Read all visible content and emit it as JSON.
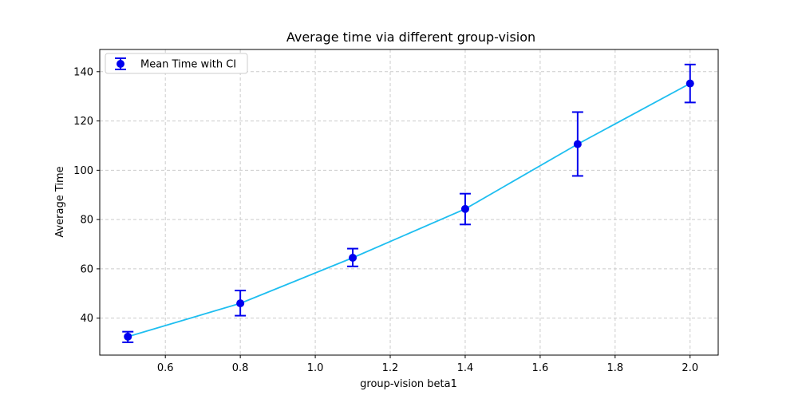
{
  "chart_data": {
    "type": "line",
    "title": "Average time via different group-vision",
    "xlabel": "group-vision beta1",
    "ylabel": "Average Time",
    "xlim": [
      0.425,
      2.075
    ],
    "ylim": [
      25,
      149
    ],
    "x_ticks": [
      0.6,
      0.8,
      1.0,
      1.2,
      1.4,
      1.6,
      1.8,
      2.0
    ],
    "x_tick_labels": [
      "0.6",
      "0.8",
      "1.0",
      "1.2",
      "1.4",
      "1.6",
      "1.8",
      "2.0"
    ],
    "y_ticks": [
      40,
      60,
      80,
      100,
      120,
      140
    ],
    "y_tick_labels": [
      "40",
      "60",
      "80",
      "100",
      "120",
      "140"
    ],
    "grid": true,
    "legend_position": "top-left",
    "series": [
      {
        "name": "Mean Time with CI",
        "line_color": "#1EBEF0",
        "marker_color": "#0000EE",
        "x": [
          0.5,
          0.8,
          1.1,
          1.4,
          1.7,
          2.0
        ],
        "y": [
          32.5,
          46.0,
          64.5,
          84.3,
          110.6,
          135.2
        ],
        "ci_low": [
          30.2,
          41.0,
          61.0,
          78.0,
          97.7,
          127.5
        ],
        "ci_high": [
          34.5,
          51.2,
          68.2,
          90.5,
          123.6,
          142.9
        ]
      }
    ]
  }
}
